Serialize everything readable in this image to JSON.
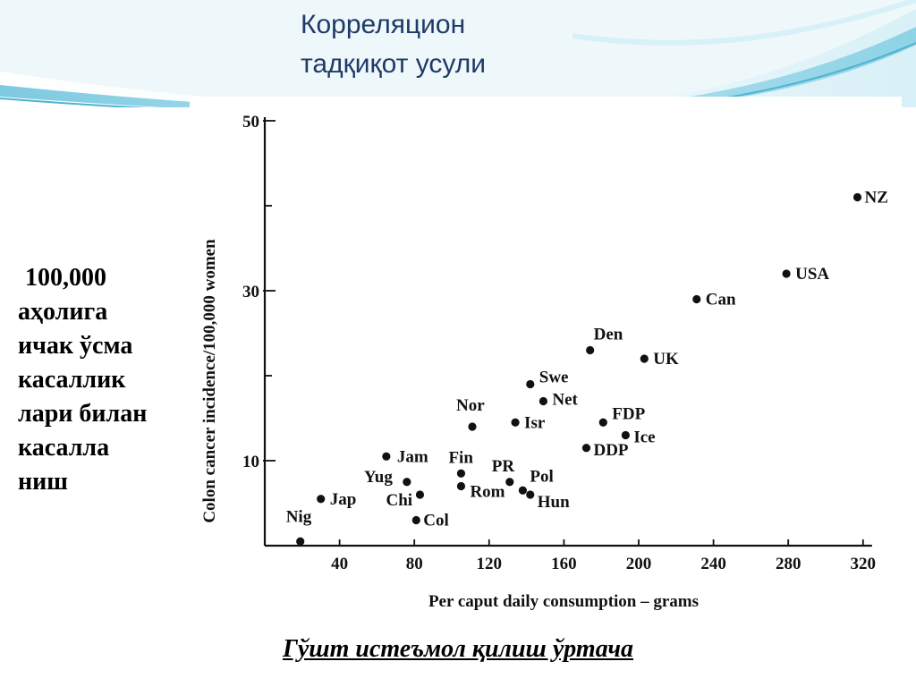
{
  "slide": {
    "title_lines": [
      "Корреляцион",
      "тадқиқот усули"
    ],
    "left_text_lines": [
      "100,000",
      "аҳолига",
      "ичак ўсма",
      "касаллик",
      "лари билан",
      "касалла",
      "ниш"
    ],
    "caption": "Гўшт истеъмол қилиш ўртача"
  },
  "colors": {
    "title": "#1f3a66",
    "banner_light": "#eef8fb",
    "banner_mid": "#b8e4f0",
    "banner_dark": "#7ccbe2",
    "ink": "#111111"
  },
  "chart_data": {
    "type": "scatter",
    "xlabel": "Per caput daily consumption – grams",
    "ylabel": "Colon cancer incidence/100,000 women",
    "xlim": [
      0,
      320
    ],
    "ylim": [
      0,
      50
    ],
    "xticks": [
      40,
      80,
      120,
      160,
      200,
      240,
      280,
      320
    ],
    "yticks_labeled": [
      10,
      30,
      50
    ],
    "yticks_minor": [
      20,
      40
    ],
    "grid": false,
    "points": [
      {
        "label": "Nig",
        "x": 19,
        "y": 0.5
      },
      {
        "label": "Jap",
        "x": 30,
        "y": 5.5
      },
      {
        "label": "Jam",
        "x": 65,
        "y": 10.5
      },
      {
        "label": "Yug",
        "x": 76,
        "y": 7.5
      },
      {
        "label": "Chi",
        "x": 83,
        "y": 6
      },
      {
        "label": "Col",
        "x": 81,
        "y": 3
      },
      {
        "label": "Fin",
        "x": 105,
        "y": 8.5
      },
      {
        "label": "Rom",
        "x": 105,
        "y": 7
      },
      {
        "label": "Nor",
        "x": 111,
        "y": 14
      },
      {
        "label": "PR",
        "x": 131,
        "y": 7.5
      },
      {
        "label": "Pol",
        "x": 138,
        "y": 6.5
      },
      {
        "label": "Hun",
        "x": 142,
        "y": 6
      },
      {
        "label": "Isr",
        "x": 134,
        "y": 14.5
      },
      {
        "label": "Swe",
        "x": 142,
        "y": 19
      },
      {
        "label": "Net",
        "x": 149,
        "y": 17
      },
      {
        "label": "Den",
        "x": 174,
        "y": 23
      },
      {
        "label": "DDP",
        "x": 172,
        "y": 11.5
      },
      {
        "label": "FDP",
        "x": 181,
        "y": 14.5
      },
      {
        "label": "Ice",
        "x": 193,
        "y": 13
      },
      {
        "label": "UK",
        "x": 203,
        "y": 22
      },
      {
        "label": "Can",
        "x": 231,
        "y": 29
      },
      {
        "label": "USA",
        "x": 279,
        "y": 32
      },
      {
        "label": "NZ",
        "x": 317,
        "y": 41
      }
    ]
  }
}
